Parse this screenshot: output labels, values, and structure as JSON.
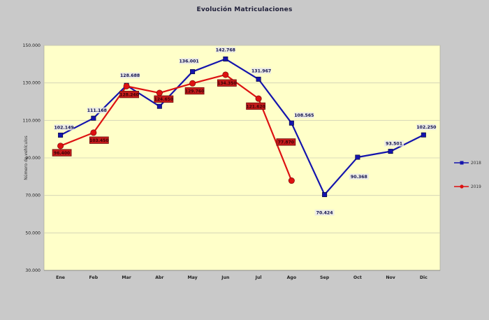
{
  "chart_data": {
    "type": "line",
    "title": "Evolución Matriculaciones",
    "ylabel": "Número de vehículos",
    "xlabel": "",
    "categories": [
      "Ene",
      "Feb",
      "Mar",
      "Abr",
      "May",
      "Jun",
      "Jul",
      "Ago",
      "Sep",
      "Oct",
      "Nov",
      "Dic"
    ],
    "ylim": [
      30000,
      150000
    ],
    "ytick_step": 20000,
    "ytick_labels": [
      "150.000",
      "130.000",
      "110.000",
      "90.000",
      "70.000",
      "50.000",
      "30.000"
    ],
    "grid": "horizontal",
    "legend_position": "right",
    "plot_bg": "#ffffc9",
    "series": [
      {
        "name": "2018",
        "color": "#1414ad",
        "marker": "square",
        "label_style": "light",
        "values": [
          102149,
          111168,
          128688,
          117500,
          136001,
          142768,
          131967,
          108565,
          70424,
          90368,
          93501,
          102250
        ],
        "labels": [
          "102.149",
          "111.168",
          "128.688",
          "",
          "136.001",
          "142.768",
          "131.967",
          "108.565",
          "70.424",
          "90.368",
          "93.501",
          "102.250"
        ]
      },
      {
        "name": "2019",
        "color": "#dd1111",
        "marker": "circle",
        "label_style": "red-box",
        "values": [
          96400,
          103450,
          128240,
          124650,
          129760,
          134350,
          121620,
          77870,
          null,
          null,
          null,
          null
        ],
        "labels": [
          "96.400",
          "103.450",
          "128.240",
          "124.650",
          "129.760",
          "134.350",
          "121.620",
          "77.870",
          "",
          "",
          "",
          ""
        ]
      }
    ]
  }
}
